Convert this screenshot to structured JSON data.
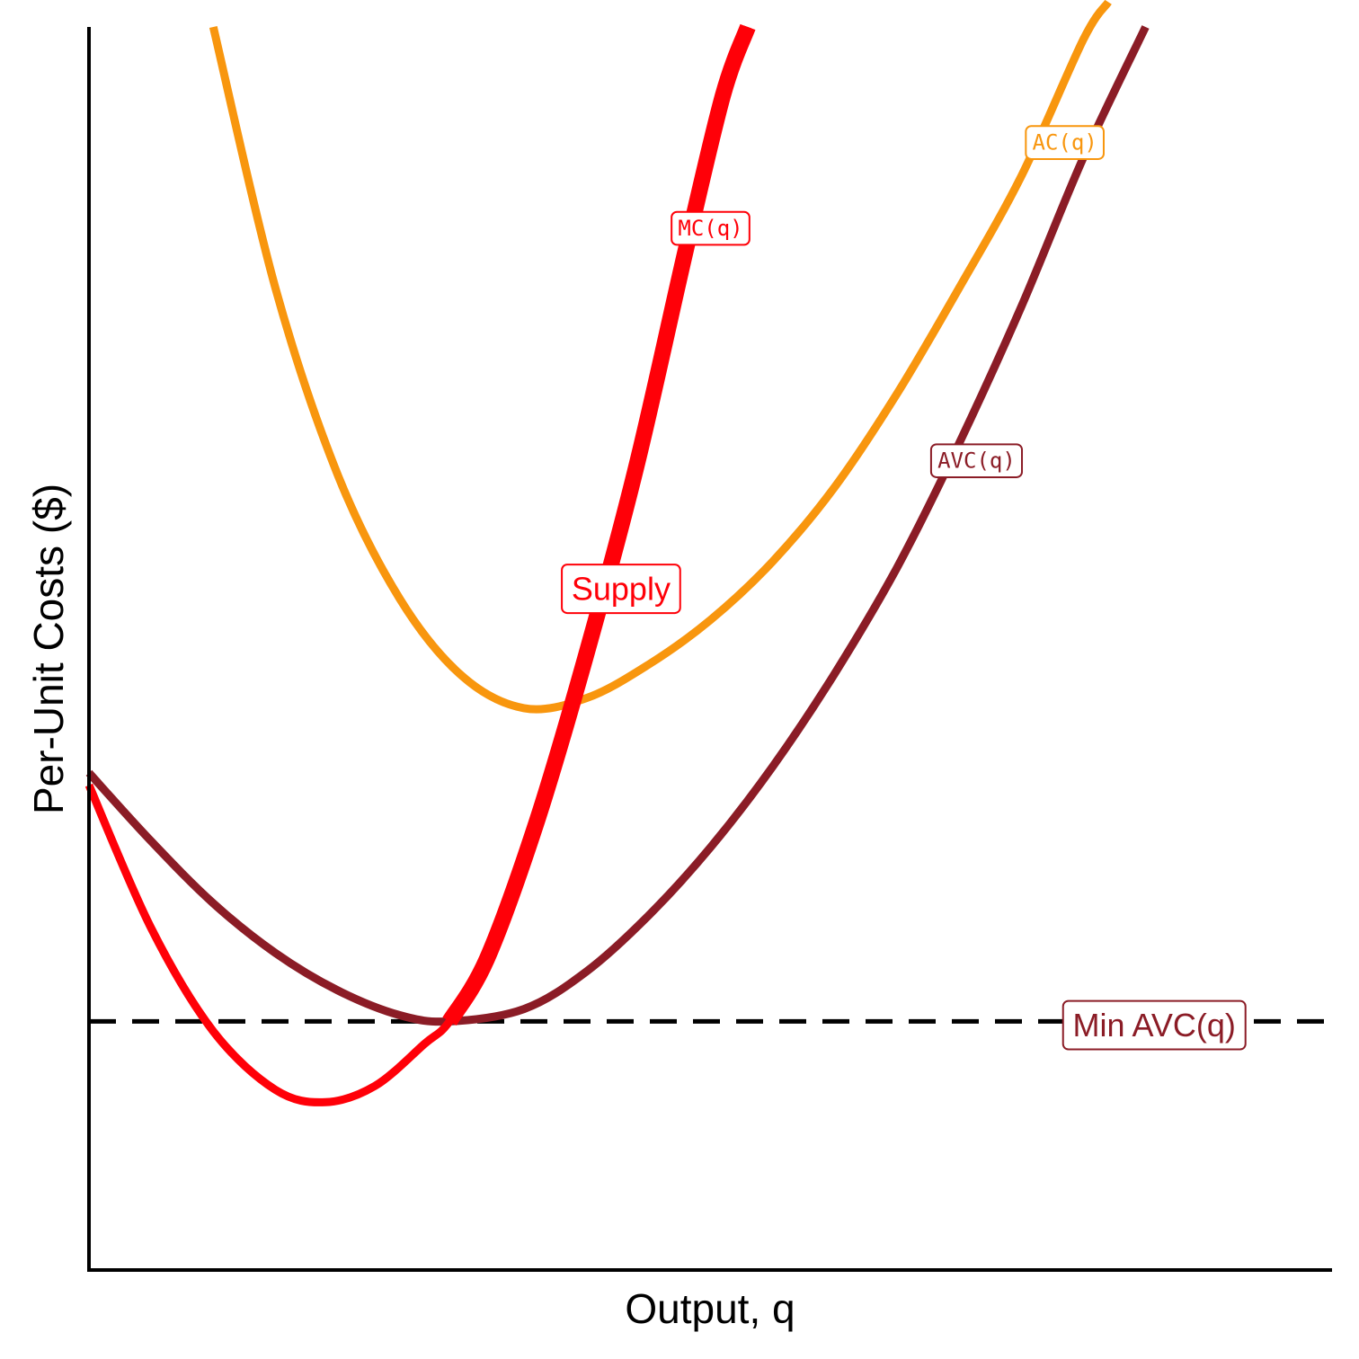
{
  "chart_data": {
    "type": "line",
    "title": "",
    "xlabel": "Output, q",
    "ylabel": "Per-Unit Costs ($)",
    "xlim": [
      0,
      10
    ],
    "ylim": [
      0,
      10
    ],
    "grid": false,
    "ticks": false,
    "series": [
      {
        "name": "AC(q)",
        "label": "AC(q)",
        "color": "#F8960E",
        "x": [
          1,
          1.5,
          2,
          2.5,
          3,
          3.5,
          4,
          4.5,
          5,
          5.5,
          6,
          6.5,
          7,
          7.5,
          8,
          8.2
        ],
        "y": [
          10.0,
          7.9,
          6.4,
          5.4,
          4.78,
          4.52,
          4.6,
          4.87,
          5.23,
          5.7,
          6.3,
          7.05,
          7.9,
          8.8,
          9.9,
          10.2
        ]
      },
      {
        "name": "AVC(q)",
        "label": "AVC(q)",
        "color": "#8B1C26",
        "x": [
          0,
          0.5,
          1,
          1.5,
          2,
          2.5,
          2.9,
          3.5,
          4,
          4.5,
          5,
          5.5,
          6,
          6.5,
          7,
          7.5,
          8,
          8.5
        ],
        "y": [
          4.0,
          3.45,
          2.95,
          2.55,
          2.25,
          2.05,
          2.0,
          2.1,
          2.4,
          2.85,
          3.4,
          4.05,
          4.8,
          5.65,
          6.65,
          7.75,
          8.95,
          10.0
        ]
      },
      {
        "name": "MC(q)",
        "label": "MC(q)",
        "color": "#FF0008",
        "x": [
          0,
          0.5,
          1,
          1.5,
          1.9,
          2.3,
          2.7,
          2.9,
          3.2,
          3.6,
          4,
          4.4,
          4.8,
          5.1,
          5.3
        ],
        "y": [
          3.9,
          2.75,
          1.92,
          1.45,
          1.35,
          1.48,
          1.82,
          2.0,
          2.5,
          3.6,
          4.95,
          6.45,
          8.2,
          9.45,
          10.0
        ]
      }
    ],
    "supply": {
      "label": "Supply",
      "color": "#FF0008",
      "x": [
        2.9,
        3.2,
        3.6,
        4,
        4.4,
        4.8,
        5.1,
        5.3
      ],
      "y": [
        2.0,
        2.5,
        3.6,
        4.95,
        6.45,
        8.2,
        9.45,
        10.0
      ]
    },
    "reference_line": {
      "label": "Min AVC(q)",
      "y": 2.0,
      "style": "dashed",
      "color": "#000000",
      "label_color": "#8B1C26"
    }
  }
}
